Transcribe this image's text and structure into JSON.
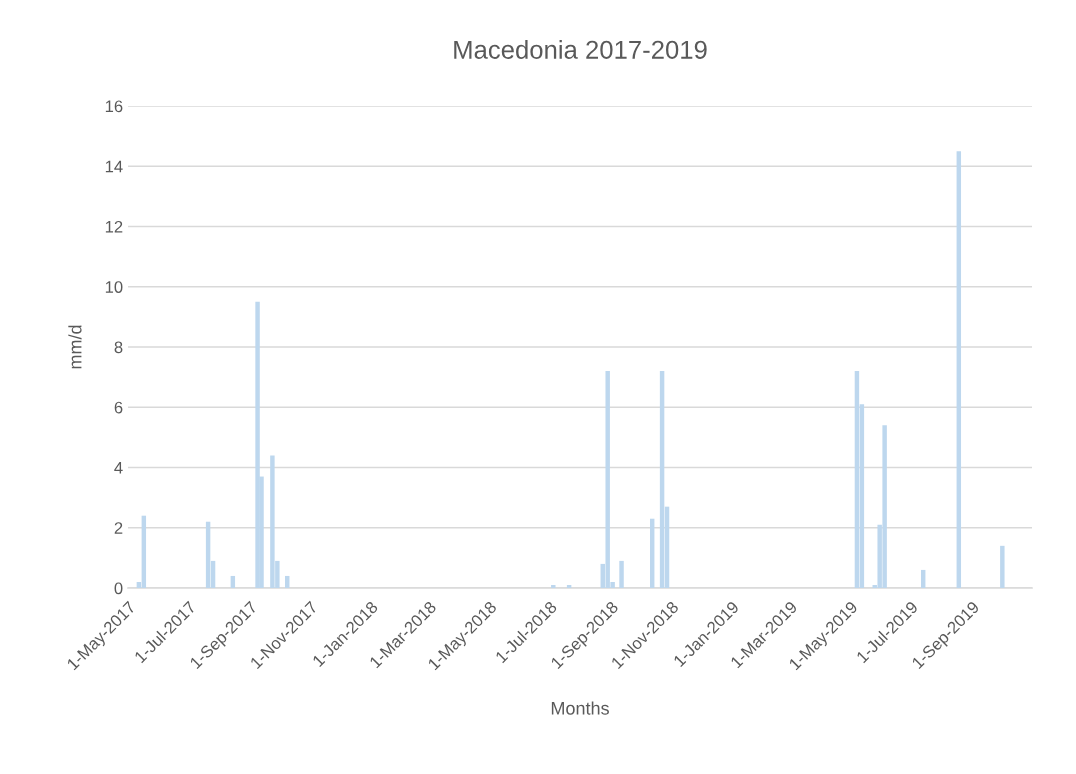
{
  "chart_data": {
    "type": "bar",
    "title": "Macedonia 2017-2019",
    "xlabel": "Months",
    "ylabel": "mm/d",
    "x": [
      "2017-05-12",
      "2017-05-17",
      "2017-07-21",
      "2017-07-26",
      "2017-08-15",
      "2017-09-09",
      "2017-09-13",
      "2017-09-24",
      "2017-09-29",
      "2017-10-09",
      "2018-07-05",
      "2018-07-21",
      "2018-08-24",
      "2018-08-29",
      "2018-09-03",
      "2018-09-12",
      "2018-10-13",
      "2018-10-23",
      "2018-10-28",
      "2019-05-08",
      "2019-05-13",
      "2019-05-26",
      "2019-05-31",
      "2019-06-05",
      "2019-07-14",
      "2019-08-19",
      "2019-10-02"
    ],
    "values": [
      0.2,
      2.4,
      2.2,
      0.9,
      0.4,
      9.5,
      3.7,
      4.4,
      0.9,
      0.4,
      0.1,
      0.1,
      0.8,
      7.2,
      0.2,
      0.9,
      2.3,
      7.2,
      2.7,
      7.2,
      6.1,
      0.1,
      2.1,
      5.4,
      0.6,
      14.5,
      1.4
    ],
    "color": "#bdd7ee",
    "xlim": [
      "2017-05-01",
      "2019-11-01"
    ],
    "xticks": [
      {
        "value": "2017-05-01",
        "label": "1-May-2017"
      },
      {
        "value": "2017-07-01",
        "label": "1-Jul-2017"
      },
      {
        "value": "2017-09-01",
        "label": "1-Sep-2017"
      },
      {
        "value": "2017-11-01",
        "label": "1-Nov-2017"
      },
      {
        "value": "2018-01-01",
        "label": "1-Jan-2018"
      },
      {
        "value": "2018-03-01",
        "label": "1-Mar-2018"
      },
      {
        "value": "2018-05-01",
        "label": "1-May-2018"
      },
      {
        "value": "2018-07-01",
        "label": "1-Jul-2018"
      },
      {
        "value": "2018-09-01",
        "label": "1-Sep-2018"
      },
      {
        "value": "2018-11-01",
        "label": "1-Nov-2018"
      },
      {
        "value": "2019-01-01",
        "label": "1-Jan-2019"
      },
      {
        "value": "2019-03-01",
        "label": "1-Mar-2019"
      },
      {
        "value": "2019-05-01",
        "label": "1-May-2019"
      },
      {
        "value": "2019-07-01",
        "label": "1-Jul-2019"
      },
      {
        "value": "2019-09-01",
        "label": "1-Sep-2019"
      }
    ],
    "ylim": [
      0,
      16
    ],
    "yticks": [
      0,
      2,
      4,
      6,
      8,
      10,
      12,
      14,
      16
    ],
    "grid": "y",
    "legend": false
  }
}
